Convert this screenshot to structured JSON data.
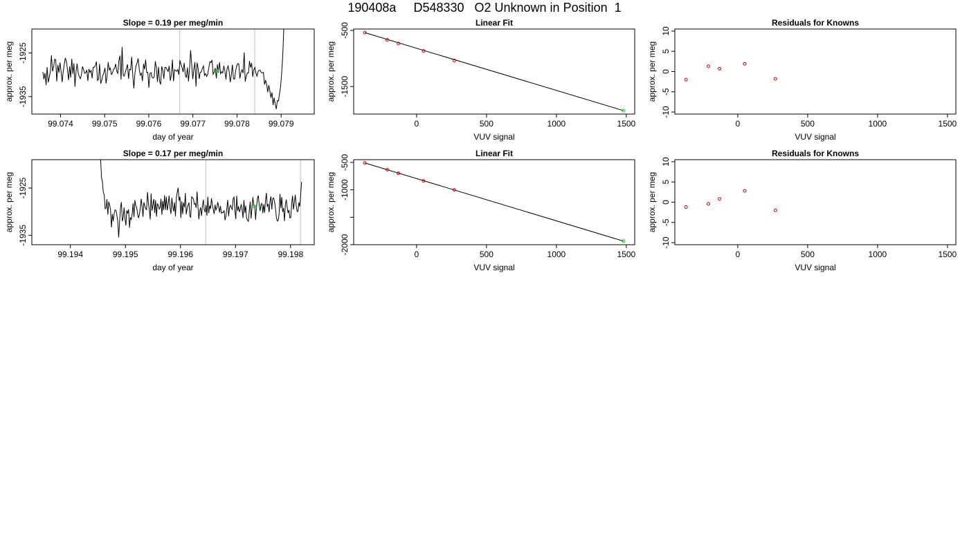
{
  "main_title": "190408a     D548330   O2 Unknown in Position  1",
  "colors": {
    "known": "#cc0000",
    "unknown": "#22dd22",
    "line": "#000000",
    "marker": "#c8c8c8"
  },
  "chart_data": [
    {
      "type": "line",
      "title": "Slope =  0.19  per meg/min",
      "xlabel": "day of year",
      "ylabel": "approx. per meg",
      "xlim": [
        99.07335,
        99.07975
      ],
      "ylim": [
        -1939,
        -1919.5
      ],
      "xticks": [
        "99.074",
        "99.075",
        "99.076",
        "99.077",
        "99.078",
        "99.079"
      ],
      "yticks": [
        "-1925",
        "-1935"
      ],
      "ytick_values": [
        -1925,
        -1935
      ],
      "xtick_values": [
        99.074,
        99.075,
        99.076,
        99.077,
        99.078,
        99.079
      ],
      "series_start": 99.0736,
      "series_end": 99.07906,
      "values": [
        -1929.35,
        -1930.99,
        -1929.59,
        -1932.35,
        -1928.22,
        -1931.74,
        -1930.58,
        -1929.17,
        -1925.53,
        -1929.22,
        -1928.24,
        -1926.43,
        -1926.53,
        -1931.51,
        -1927.72,
        -1929.48,
        -1927.17,
        -1929.15,
        -1931.68,
        -1929.27,
        -1927.59,
        -1926.11,
        -1927.02,
        -1928.84,
        -1931.18,
        -1928.05,
        -1930.61,
        -1926.32,
        -1929.79,
        -1927.36,
        -1932.72,
        -1929.16,
        -1927.45,
        -1929.63,
        -1930.41,
        -1930.89,
        -1930.0,
        -1928.08,
        -1928.81,
        -1929.65,
        -1929.51,
        -1928.88,
        -1931.4,
        -1928.64,
        -1929.44,
        -1929.01,
        -1930.76,
        -1928.27,
        -1928.28,
        -1927.92,
        -1926.97,
        -1931.29,
        -1930.99,
        -1927.49,
        -1932.01,
        -1931.24,
        -1930.12,
        -1929.48,
        -1928.39,
        -1932.01,
        -1930.13,
        -1927.08,
        -1928.89,
        -1928.44,
        -1929.91,
        -1929.61,
        -1928.71,
        -1928.56,
        -1927.49,
        -1929.19,
        -1929.68,
        -1926.73,
        -1925.61,
        -1931.09,
        -1923.59,
        -1930.11,
        -1930.28,
        -1929.36,
        -1928.51,
        -1927.6,
        -1930.92,
        -1928.71,
        -1928.87,
        -1925.87,
        -1930.24,
        -1933.11,
        -1929.57,
        -1927.98,
        -1927.29,
        -1926.26,
        -1928.75,
        -1930.07,
        -1929.61,
        -1931.44,
        -1927.49,
        -1928.73,
        -1926.51,
        -1929.46,
        -1929.42,
        -1932.96,
        -1929.71,
        -1929.48,
        -1930.6,
        -1930.76,
        -1930.46,
        -1926.91,
        -1928.35,
        -1931.64,
        -1928.18,
        -1931.5,
        -1932.22,
        -1928.06,
        -1928.97,
        -1930.92,
        -1928.29,
        -1928.3,
        -1928.85,
        -1929.22,
        -1927.96,
        -1931.36,
        -1930.08,
        -1926.53,
        -1931.48,
        -1928.83,
        -1929.02,
        -1929.19,
        -1928.79,
        -1929.96,
        -1926.68,
        -1927.62,
        -1928.3,
        -1929.36,
        -1927.27,
        -1929.99,
        -1930.64,
        -1928.32,
        -1931.48,
        -1928.59,
        -1924.36,
        -1927.71,
        -1931.0,
        -1928.71,
        -1927.11,
        -1932.69,
        -1927.21,
        -1928.54,
        -1930.91,
        -1929.39,
        -1929.34,
        -1928.53,
        -1927.97,
        -1930.14,
        -1929.74,
        -1930.38,
        -1929.85,
        -1928.37,
        -1926.99,
        -1927.19,
        -1926.6,
        -1929.87,
        -1929.39,
        -1928.45,
        -1930.82,
        -1927.6,
        -1929.51,
        -1927.12,
        -1929.74,
        -1929.27,
        -1929.57,
        -1927.94,
        -1929.07,
        -1931.08,
        -1928.67,
        -1927.95,
        -1929.3,
        -1931.67,
        -1930.03,
        -1927.67,
        -1930.89,
        -1930.99,
        -1929.14,
        -1928.01,
        -1927.42,
        -1927.51,
        -1930.85,
        -1929.42,
        -1928.84,
        -1929.63,
        -1924.86,
        -1931.58,
        -1930.27,
        -1929.58,
        -1929.58,
        -1926.82,
        -1928.33,
        -1927.29,
        -1930.45,
        -1928.79,
        -1928.29,
        -1929.62,
        -1930.31,
        -1929.25,
        -1928.95,
        -1928.96,
        -1929.47,
        -1929.53,
        -1929.44,
        -1932.24,
        -1931.21,
        -1932.24,
        -1933.98,
        -1932.37,
        -1933.69,
        -1935.28,
        -1934.01,
        -1936.95,
        -1935.24,
        -1936.75,
        -1937.84,
        -1935.9,
        -1935.99,
        -1934.42,
        -1932.71,
        -1929.78,
        -1925.64,
        -1919.5
      ],
      "vlines": [
        99.0767,
        99.0784
      ],
      "unknown_point": {
        "x": 99.07755,
        "y": -1929.0
      }
    },
    {
      "type": "scatter",
      "title": "Linear Fit",
      "xlabel": "VUV signal",
      "ylabel": "approx. per meg",
      "xlim": [
        -450,
        1560
      ],
      "ylim": [
        -1990,
        -475
      ],
      "xticks": [
        "0",
        "500",
        "1000",
        "1500"
      ],
      "xtick_values": [
        0,
        500,
        1000,
        1500
      ],
      "yticks": [
        "-500",
        "-1500"
      ],
      "ytick_values": [
        -500,
        -1500
      ],
      "known_points": [
        {
          "x": -370,
          "y": -540
        },
        {
          "x": -210,
          "y": -668
        },
        {
          "x": -130,
          "y": -734
        },
        {
          "x": 50,
          "y": -866
        },
        {
          "x": 270,
          "y": -1036
        }
      ],
      "unknown_point": {
        "x": 1480,
        "y": -1929
      },
      "fit_line": [
        {
          "x": -370,
          "y": -540
        },
        {
          "x": 1480,
          "y": -1929
        }
      ]
    },
    {
      "type": "scatter",
      "title": "Residuals for Knowns",
      "xlabel": "VUV signal",
      "ylabel": "approx. per meg",
      "xlim": [
        -450,
        1560
      ],
      "ylim": [
        -10.5,
        10.5
      ],
      "xticks": [
        "0",
        "500",
        "1000",
        "1500"
      ],
      "xtick_values": [
        0,
        500,
        1000,
        1500
      ],
      "yticks": [
        "-10",
        "-5",
        "0",
        "5",
        "10"
      ],
      "ytick_values": [
        -10,
        -5,
        0,
        5,
        10
      ],
      "known_points": [
        {
          "x": -370,
          "y": -2.0
        },
        {
          "x": -210,
          "y": 1.3
        },
        {
          "x": -130,
          "y": 0.7
        },
        {
          "x": 50,
          "y": 1.9
        },
        {
          "x": 270,
          "y": -1.8
        }
      ]
    },
    {
      "type": "line",
      "title": "Slope =  0.17  per meg/min",
      "xlabel": "day of year",
      "ylabel": "approx. per meg",
      "xlim": [
        99.1933,
        99.19843
      ],
      "ylim": [
        -1937,
        -1919
      ],
      "xticks": [
        "99.194",
        "99.195",
        "99.196",
        "99.197",
        "99.198"
      ],
      "xtick_values": [
        99.194,
        99.195,
        99.196,
        99.197,
        99.198
      ],
      "yticks": [
        "-1925",
        "-1935"
      ],
      "ytick_values": [
        -1925,
        -1935
      ],
      "series_start": 99.19455,
      "series_end": 99.1982,
      "values": [
        -1919.0,
        -1922.8,
        -1923.69,
        -1925.98,
        -1926.41,
        -1929.39,
        -1929.26,
        -1927.37,
        -1930.62,
        -1927.9,
        -1928.58,
        -1929.64,
        -1933.34,
        -1930.49,
        -1932.05,
        -1930.4,
        -1929.64,
        -1929.71,
        -1930.68,
        -1932.1,
        -1935.43,
        -1932.01,
        -1929.13,
        -1927.99,
        -1932.04,
        -1931.25,
        -1929.12,
        -1931.53,
        -1932.92,
        -1929.72,
        -1930.39,
        -1929.53,
        -1933.38,
        -1931.22,
        -1931.66,
        -1930.47,
        -1928.25,
        -1931.16,
        -1927.55,
        -1928.79,
        -1929.14,
        -1930.49,
        -1931.35,
        -1930.58,
        -1929.24,
        -1927.29,
        -1928.93,
        -1931.1,
        -1928.03,
        -1928.75,
        -1929.37,
        -1929.59,
        -1925.88,
        -1928.12,
        -1929.46,
        -1931.66,
        -1926.14,
        -1929.82,
        -1928.63,
        -1927.32,
        -1930.27,
        -1927.56,
        -1931.04,
        -1928.29,
        -1928.72,
        -1929.45,
        -1929.16,
        -1927.26,
        -1930.67,
        -1927.73,
        -1929.66,
        -1926.54,
        -1929.61,
        -1926.86,
        -1929.72,
        -1928.4,
        -1926.63,
        -1929.24,
        -1930.46,
        -1927.06,
        -1928.95,
        -1929.95,
        -1928.03,
        -1930.99,
        -1927.1,
        -1925.86,
        -1924.92,
        -1927.71,
        -1926.83,
        -1931.34,
        -1927.79,
        -1930.52,
        -1928.1,
        -1929.07,
        -1926.07,
        -1930.54,
        -1929.3,
        -1928.66,
        -1928.06,
        -1930.95,
        -1931.17,
        -1926.87,
        -1927.04,
        -1927.36,
        -1928.44,
        -1928.26,
        -1929.18,
        -1925.78,
        -1928.91,
        -1931.62,
        -1929.75,
        -1929.12,
        -1930.9,
        -1928.84,
        -1927.47,
        -1929.53,
        -1930.11,
        -1928.62,
        -1930.84,
        -1926.86,
        -1930.31,
        -1928.72,
        -1929.44,
        -1927.18,
        -1928.51,
        -1929.57,
        -1930.49,
        -1928.52,
        -1929.64,
        -1929.18,
        -1927.99,
        -1928.91,
        -1930.16,
        -1928.77,
        -1930.32,
        -1930.17,
        -1930.19,
        -1929.72,
        -1931.84,
        -1930.99,
        -1929.33,
        -1927.52,
        -1930.97,
        -1929.14,
        -1928.68,
        -1929.12,
        -1929.54,
        -1927.27,
        -1926.92,
        -1929.77,
        -1931.6,
        -1926.64,
        -1929.84,
        -1928.88,
        -1930.1,
        -1929.44,
        -1928.42,
        -1929.63,
        -1931.35,
        -1927.56,
        -1930.29,
        -1928.76,
        -1931.42,
        -1931.8,
        -1932.06,
        -1929.73,
        -1927.88,
        -1931.45,
        -1929.02,
        -1926.94,
        -1928.64,
        -1928.68,
        -1931.72,
        -1929.09,
        -1927.25,
        -1926.57,
        -1928.6,
        -1929.86,
        -1928.44,
        -1928.28,
        -1930.32,
        -1928.44,
        -1930.22,
        -1927.65,
        -1926.04,
        -1928.97,
        -1928.37,
        -1930.14,
        -1927.86,
        -1926.78,
        -1929.52,
        -1927.13,
        -1927.15,
        -1927.92,
        -1929.32,
        -1931.2,
        -1932.0,
        -1931.87,
        -1930.58,
        -1926.24,
        -1929.27,
        -1926.9,
        -1930.08,
        -1929.24,
        -1932.0,
        -1928.52,
        -1927.45,
        -1929.01,
        -1930.29,
        -1929.66,
        -1931.34,
        -1931.25,
        -1928.26,
        -1926.64,
        -1929.57,
        -1928.11,
        -1926.44,
        -1928.62,
        -1929.95,
        -1929.98,
        -1928.04,
        -1928.91,
        -1926.49,
        -1923.7
      ],
      "vlines": [
        99.19646,
        99.19818
      ],
      "unknown_point": {
        "x": 99.19735,
        "y": -1929.0
      }
    },
    {
      "type": "scatter",
      "title": "Linear Fit",
      "xlabel": "VUV signal",
      "ylabel": "approx. per meg",
      "xlim": [
        -450,
        1560
      ],
      "ylim": [
        -2000,
        -450
      ],
      "xticks": [
        "0",
        "500",
        "1000",
        "1500"
      ],
      "xtick_values": [
        0,
        500,
        1000,
        1500
      ],
      "yticks": [
        "-500",
        "-1000",
        "-1500",
        "-2000"
      ],
      "ytick_values": [
        -500,
        -1000,
        -1500,
        -2000
      ],
      "ytick_labels_shown": [
        "-500",
        "-1000",
        "",
        "-2000"
      ],
      "known_points": [
        {
          "x": -370,
          "y": -510
        },
        {
          "x": -210,
          "y": -633
        },
        {
          "x": -130,
          "y": -698
        },
        {
          "x": 50,
          "y": -838
        },
        {
          "x": 270,
          "y": -1000
        }
      ],
      "unknown_point": {
        "x": 1480,
        "y": -1935
      },
      "fit_line": [
        {
          "x": -370,
          "y": -510
        },
        {
          "x": 1480,
          "y": -1935
        }
      ]
    },
    {
      "type": "scatter",
      "title": "Residuals for Knowns",
      "xlabel": "VUV signal",
      "ylabel": "approx. per meg",
      "xlim": [
        -450,
        1560
      ],
      "ylim": [
        -10.5,
        10.5
      ],
      "xticks": [
        "0",
        "500",
        "1000",
        "1500"
      ],
      "xtick_values": [
        0,
        500,
        1000,
        1500
      ],
      "yticks": [
        "-10",
        "-5",
        "0",
        "5",
        "10"
      ],
      "ytick_values": [
        -10,
        -5,
        0,
        5,
        10
      ],
      "known_points": [
        {
          "x": -370,
          "y": -1.2
        },
        {
          "x": -210,
          "y": -0.4
        },
        {
          "x": -130,
          "y": 0.8
        },
        {
          "x": 50,
          "y": 2.8
        },
        {
          "x": 270,
          "y": -2.0
        }
      ]
    }
  ]
}
